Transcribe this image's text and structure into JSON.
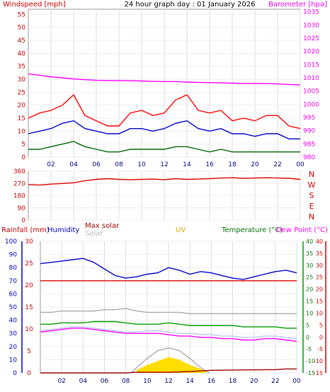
{
  "chart_data": [
    {
      "type": "line",
      "title": "24 hour graph day : 01 January 2026",
      "left_axis_label": "Windspeed [mph]",
      "right_axis_label": "Barometer [hpa]",
      "x_ticks": [
        "02",
        "04",
        "06",
        "08",
        "10",
        "12",
        "14",
        "16",
        "18",
        "20",
        "22",
        "00"
      ],
      "left_ticks": [
        "0",
        "5",
        "10",
        "15",
        "20",
        "25",
        "30",
        "35",
        "40",
        "45",
        "50",
        "55"
      ],
      "right_ticks": [
        "980",
        "985",
        "990",
        "995",
        "1000",
        "1005",
        "1010",
        "1015",
        "1020",
        "1025",
        "1030",
        "1035"
      ],
      "ylim_left": [
        0,
        57
      ],
      "ylim_right": [
        980,
        1036
      ],
      "series": [
        {
          "axis": "right",
          "color": "#ff00ff",
          "x": [
            0,
            1,
            2,
            3,
            4,
            5,
            6,
            7,
            8,
            9,
            10,
            11,
            12,
            13,
            14,
            15,
            16,
            17,
            18,
            19,
            20,
            21,
            22,
            23,
            24
          ],
          "values": [
            1011.5,
            1011,
            1010.4,
            1010,
            1009.6,
            1009.3,
            1009.1,
            1009,
            1009,
            1008.9,
            1008.8,
            1008.7,
            1008.6,
            1008.6,
            1008.4,
            1008.3,
            1008.2,
            1008.1,
            1008,
            1007.9,
            1007.9,
            1007.8,
            1007.7,
            1007.5,
            1007.3
          ]
        },
        {
          "axis": "left",
          "color": "#ff0000",
          "x": [
            0,
            1,
            2,
            3,
            4,
            5,
            6,
            7,
            8,
            9,
            10,
            11,
            12,
            13,
            14,
            15,
            16,
            17,
            18,
            19,
            20,
            21,
            22,
            23,
            24
          ],
          "values": [
            15,
            17,
            18,
            20,
            24,
            16,
            14,
            12,
            12,
            17,
            18,
            16,
            17,
            22,
            24,
            18,
            17,
            18,
            14,
            15,
            14,
            16,
            16,
            12,
            11
          ]
        },
        {
          "axis": "left",
          "color": "#0000cc",
          "x": [
            0,
            1,
            2,
            3,
            4,
            5,
            6,
            7,
            8,
            9,
            10,
            11,
            12,
            13,
            14,
            15,
            16,
            17,
            18,
            19,
            20,
            21,
            22,
            23,
            24
          ],
          "values": [
            9,
            10,
            11,
            13,
            14,
            11,
            10,
            9,
            9,
            11,
            11,
            10,
            11,
            13,
            14,
            11,
            10,
            11,
            9,
            9,
            8,
            9,
            9,
            7,
            7
          ]
        },
        {
          "axis": "left",
          "color": "#006600",
          "x": [
            0,
            1,
            2,
            3,
            4,
            5,
            6,
            7,
            8,
            9,
            10,
            11,
            12,
            13,
            14,
            15,
            16,
            17,
            18,
            19,
            20,
            21,
            22,
            23,
            24
          ],
          "values": [
            3,
            3,
            4,
            5,
            6,
            4,
            3,
            2,
            2,
            3,
            3,
            3,
            3,
            4,
            4,
            3,
            2,
            3,
            2,
            2,
            2,
            2,
            2,
            2,
            2
          ]
        }
      ]
    },
    {
      "type": "line",
      "right_labels": [
        "N",
        "W",
        "S",
        "E",
        "N"
      ],
      "left_ticks": [
        "0",
        "90",
        "180",
        "270",
        "360"
      ],
      "ylim": [
        0,
        360
      ],
      "series": [
        {
          "color": "#dd0000",
          "x": [
            0,
            1,
            2,
            3,
            4,
            5,
            6,
            7,
            8,
            9,
            10,
            11,
            12,
            13,
            14,
            15,
            16,
            17,
            18,
            19,
            20,
            21,
            22,
            23,
            24
          ],
          "values": [
            262,
            258,
            265,
            270,
            275,
            290,
            300,
            305,
            300,
            298,
            300,
            302,
            298,
            305,
            300,
            302,
            305,
            310,
            312,
            308,
            310,
            312,
            310,
            308,
            300
          ]
        }
      ]
    },
    {
      "type": "line",
      "labels": {
        "rainfall": "Rainfall (mm)",
        "humidity": "Humidity",
        "max_solar": "Max solar",
        "solar": "Solar",
        "uv": "UV",
        "temperature": "Temperature (°C)",
        "dew_point": "Dew Point (°C)"
      },
      "rain_ticks": [
        "0",
        "5",
        "10",
        "15",
        "20",
        "25",
        "30"
      ],
      "humidity_ticks": [
        "0",
        "10",
        "20",
        "30",
        "40",
        "50",
        "60",
        "70",
        "80",
        "90",
        "100"
      ],
      "temp_ticks": [
        "-15",
        "-10",
        "-5",
        "0",
        "5",
        "10",
        "15",
        "20",
        "25",
        "30",
        "35",
        "40"
      ],
      "dew_ticks": [
        "-15",
        "-10",
        "-5",
        "0",
        "5",
        "10",
        "15",
        "20",
        "25",
        "30",
        "35",
        "40"
      ],
      "ylim_humidity": [
        0,
        100
      ],
      "series": [
        {
          "name": "Humidity",
          "axis": "humidity",
          "color": "#0000cc",
          "x": [
            0,
            1,
            2,
            3,
            4,
            5,
            6,
            7,
            8,
            9,
            10,
            11,
            12,
            13,
            14,
            15,
            16,
            17,
            18,
            19,
            20,
            21,
            22,
            23,
            24
          ],
          "values": [
            83,
            84,
            85,
            86,
            87,
            84,
            79,
            74,
            72,
            73,
            75,
            76,
            80,
            78,
            75,
            77,
            76,
            74,
            72,
            71,
            73,
            75,
            77,
            78,
            76
          ]
        },
        {
          "name": "Temperature",
          "axis": "humidity",
          "color": "#dd0000",
          "x": [
            0,
            24
          ],
          "values": [
            70,
            70
          ]
        },
        {
          "name": "Solar",
          "axis": "humidity",
          "color": "#aaaaaa",
          "x": [
            0,
            1,
            2,
            3,
            4,
            5,
            6,
            7,
            8,
            9,
            10,
            11,
            12,
            13,
            14,
            15,
            16,
            17,
            18,
            19,
            20,
            21,
            22,
            23,
            24
          ],
          "values": [
            46,
            46,
            47,
            47,
            47,
            47,
            48,
            48,
            49,
            47,
            46,
            46,
            46,
            46,
            45,
            45,
            45,
            45,
            45,
            45,
            45,
            45,
            45,
            45,
            45
          ]
        },
        {
          "name": "Temperature",
          "axis": "humidity",
          "color": "#009900",
          "x": [
            0,
            1,
            2,
            3,
            4,
            5,
            6,
            7,
            8,
            9,
            10,
            11,
            12,
            13,
            14,
            15,
            16,
            17,
            18,
            19,
            20,
            21,
            22,
            23,
            24
          ],
          "values": [
            37,
            37,
            38,
            38,
            38,
            39,
            39,
            39,
            38,
            37,
            37,
            37,
            38,
            37,
            36,
            36,
            36,
            36,
            36,
            35,
            35,
            35,
            35,
            34,
            34
          ]
        },
        {
          "name": "Dew Point",
          "axis": "humidity",
          "color": "#bbccee",
          "x": [
            0,
            1,
            2,
            3,
            4,
            5,
            6,
            7,
            8,
            9,
            10,
            11,
            12,
            13,
            14,
            15,
            16,
            17,
            18,
            19,
            20,
            21,
            22,
            23,
            24
          ],
          "values": [
            32,
            33,
            34,
            35,
            35,
            34,
            33,
            32,
            31,
            31,
            32,
            32,
            31,
            30,
            30,
            29,
            29,
            28,
            28,
            27,
            27,
            28,
            28,
            27,
            26
          ]
        },
        {
          "name": "Dew Point",
          "axis": "humidity",
          "color": "#ff00ff",
          "x": [
            0,
            1,
            2,
            3,
            4,
            5,
            6,
            7,
            8,
            9,
            10,
            11,
            12,
            13,
            14,
            15,
            16,
            17,
            18,
            19,
            20,
            21,
            22,
            23,
            24
          ],
          "values": [
            31,
            32,
            33,
            34,
            34,
            33,
            32,
            31,
            30,
            30,
            30,
            30,
            29,
            28,
            28,
            27,
            27,
            26,
            26,
            25,
            25,
            26,
            26,
            25,
            24
          ]
        },
        {
          "name": "Max solar",
          "axis": "humidity",
          "color": "#aaaaaa",
          "x": [
            8.5,
            9,
            10,
            11,
            12,
            13,
            14,
            15,
            15.8
          ],
          "values": [
            0,
            4,
            11,
            17,
            19,
            17,
            11,
            4,
            0
          ]
        },
        {
          "name": "Solar",
          "axis": "humidity",
          "color": "#ffdd00",
          "x": [
            9,
            10,
            11,
            12,
            13,
            14,
            15,
            15.5
          ],
          "values": [
            2,
            6,
            9,
            12,
            10,
            6,
            3,
            1
          ]
        },
        {
          "name": "Rainfall",
          "axis": "humidity",
          "color": "#990000",
          "x": [
            0,
            8,
            9,
            12,
            14,
            15,
            16,
            22,
            23,
            24
          ],
          "values": [
            0,
            0,
            0.5,
            0.5,
            1,
            1.5,
            2,
            2.5,
            3,
            3
          ]
        }
      ]
    }
  ]
}
